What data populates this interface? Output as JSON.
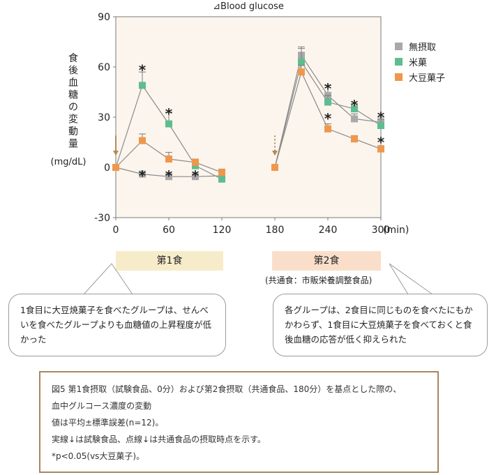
{
  "chart_data": {
    "type": "line",
    "title": "⊿Blood glucose",
    "ylabel": "食後血糖の変動量",
    "yunit": "(mg/dL)",
    "xunit": "(min)",
    "x_ticks": [
      "0",
      "60",
      "120",
      "180",
      "240",
      "300"
    ],
    "y_ticks": [
      "90",
      "60",
      "30",
      "0",
      "-30"
    ],
    "xlim": [
      0,
      300
    ],
    "ylim": [
      -30,
      90
    ],
    "legend_position": "top-right",
    "series": [
      {
        "name": "無摂取",
        "color": "#a9a9a9",
        "segments": [
          {
            "x": [
              0,
              30,
              60,
              90,
              120
            ],
            "y": [
              0,
              -4,
              -5.5,
              -5.5,
              -5
            ],
            "err": [
              0,
              1,
              1,
              1,
              1
            ]
          },
          {
            "x": [
              180,
              210,
              240,
              270,
              300
            ],
            "y": [
              0,
              67,
              43,
              29,
              27
            ],
            "err": [
              0,
              5,
              6,
              3,
              3
            ]
          }
        ]
      },
      {
        "name": "米菓",
        "color": "#5ebd8f",
        "segments": [
          {
            "x": [
              0,
              30,
              60,
              90,
              120
            ],
            "y": [
              0,
              49,
              26,
              1,
              -7
            ],
            "err": [
              0,
              8,
              7,
              2,
              2
            ]
          },
          {
            "x": [
              180,
              210,
              240,
              270,
              300
            ],
            "y": [
              0,
              63,
              39,
              35,
              25
            ],
            "err": [
              0,
              8,
              4,
              3,
              4
            ]
          }
        ]
      },
      {
        "name": "大豆菓子",
        "color": "#f0974c",
        "segments": [
          {
            "x": [
              0,
              30,
              60,
              90,
              120
            ],
            "y": [
              0,
              16,
              5,
              3,
              -3
            ],
            "err": [
              0,
              4,
              4,
              2,
              2
            ]
          },
          {
            "x": [
              180,
              210,
              240,
              270,
              300
            ],
            "y": [
              0,
              57,
              23,
              17,
              11
            ],
            "err": [
              0,
              4,
              3,
              2,
              2
            ]
          }
        ]
      }
    ],
    "annotations": [
      {
        "text": "*",
        "x": 30,
        "y": 61
      },
      {
        "text": "*",
        "x": 30,
        "y": -2
      },
      {
        "text": "*",
        "x": 60,
        "y": 35
      },
      {
        "text": "*",
        "x": 60,
        "y": -2
      },
      {
        "text": "*",
        "x": 90,
        "y": -2
      },
      {
        "text": "*",
        "x": 240,
        "y": 50
      },
      {
        "text": "*",
        "x": 240,
        "y": 32
      },
      {
        "text": "*",
        "x": 270,
        "y": 40
      },
      {
        "text": "*",
        "x": 300,
        "y": 33
      },
      {
        "text": "*",
        "x": 300,
        "y": 18
      }
    ],
    "arrows": [
      {
        "x": 0,
        "style": "solid",
        "color": "#b58a5a"
      },
      {
        "x": 180,
        "style": "dotted",
        "color": "#b58a5a"
      }
    ]
  },
  "meals": {
    "first": "第1食",
    "second": "第2食",
    "second_note": "(共通食：市販栄養調整食品)"
  },
  "bubbles": {
    "left": "1食目に大豆焼菓子を食べたグループは、せんべいを食べたグループよりも血糖値の上昇程度が低かった",
    "right": "各グループは、2食目に同じものを食べたにもかかわらず、1食目に大豆焼菓子を食べておくと食後血糖の応答が低く抑えられた"
  },
  "caption": {
    "line1": "図5 第1食摂取（試験食品、0分）および第2食摂取（共通食品、180分）を基点とした際の、",
    "line2": "血中グルコース濃度の変動",
    "line3": "値は平均±標準誤差(n=12)。",
    "line4": "実線↓は試験食品、点線↓は共通食品の摂取時点を示す。",
    "line5": "*p<0.05(vs大豆菓子)。"
  }
}
